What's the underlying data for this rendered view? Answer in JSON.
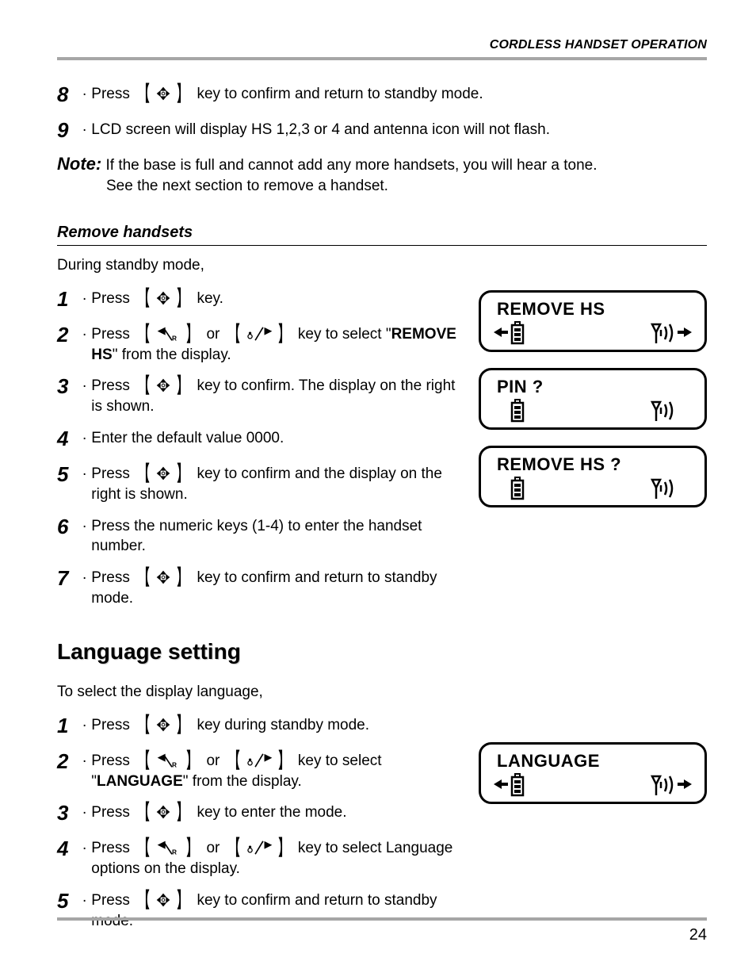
{
  "header": {
    "title": "CORDLESS HANDSET OPERATION"
  },
  "page_number": "24",
  "colors": {
    "rule_gray": "#a6a6a6",
    "shadow_gray": "#c9c9c9",
    "black": "#000000",
    "white": "#ffffff"
  },
  "top_steps": [
    {
      "n": "8",
      "prefix": "Press ",
      "key": "menu",
      "suffix": " key to confirm and return to standby mode."
    },
    {
      "n": "9",
      "text": "LCD screen will display HS 1,2,3 or 4 and antenna icon will not flash."
    }
  ],
  "note": {
    "label": "Note:",
    "line1_after_label": " If the base is full and cannot add any more handsets, you will hear a tone.",
    "line2": "See the next section to remove a handset."
  },
  "remove": {
    "heading": "Remove handsets",
    "intro": "During standby mode,",
    "steps": [
      {
        "n": "1",
        "prefix": "Press ",
        "key": "menu",
        "suffix": " key."
      },
      {
        "n": "2",
        "prefix": "Press ",
        "key": "left",
        "mid": " or ",
        "key2": "right",
        "suffix": " key to select \"",
        "bold": "REMOVE HS",
        "suffix2": "\" from the display."
      },
      {
        "n": "3",
        "prefix": "Press ",
        "key": "menu",
        "suffix": " key to confirm. The display on the right is shown."
      },
      {
        "n": "4",
        "text": "Enter the default value 0000."
      },
      {
        "n": "5",
        "prefix": "Press ",
        "key": "menu",
        "suffix": " key to confirm and the display on the right is shown."
      },
      {
        "n": "6",
        "text": "Press the numeric keys (1-4) to enter the handset number."
      },
      {
        "n": "7",
        "prefix": "Press ",
        "key": "menu",
        "suffix": " key to confirm and return to standby mode."
      }
    ],
    "lcds": [
      {
        "text": "REMOVE HS",
        "arrows": true
      },
      {
        "text": "PIN ?",
        "arrows": false
      },
      {
        "text": "REMOVE HS ?",
        "arrows": false
      }
    ]
  },
  "language": {
    "heading": "Language setting",
    "intro": "To select the display language,",
    "steps": [
      {
        "n": "1",
        "prefix": "Press ",
        "key": "menu",
        "suffix": " key during standby mode."
      },
      {
        "n": "2",
        "prefix": "Press ",
        "key": "left",
        "mid": " or ",
        "key2": "right",
        "suffix": " key to select \"",
        "bold": "LANGUAGE",
        "suffix2": "\" from the display."
      },
      {
        "n": "3",
        "prefix": "Press ",
        "key": "menu",
        "suffix": " key to enter the mode."
      },
      {
        "n": "4",
        "prefix": "Press ",
        "key": "left",
        "mid": " or ",
        "key2": "right",
        "suffix": " key to select Language options on the display."
      },
      {
        "n": "5",
        "prefix": "Press ",
        "key": "menu",
        "suffix": " key to confirm and return to standby mode."
      }
    ],
    "lcds": [
      {
        "text": "LANGUAGE",
        "arrows": true
      }
    ]
  }
}
